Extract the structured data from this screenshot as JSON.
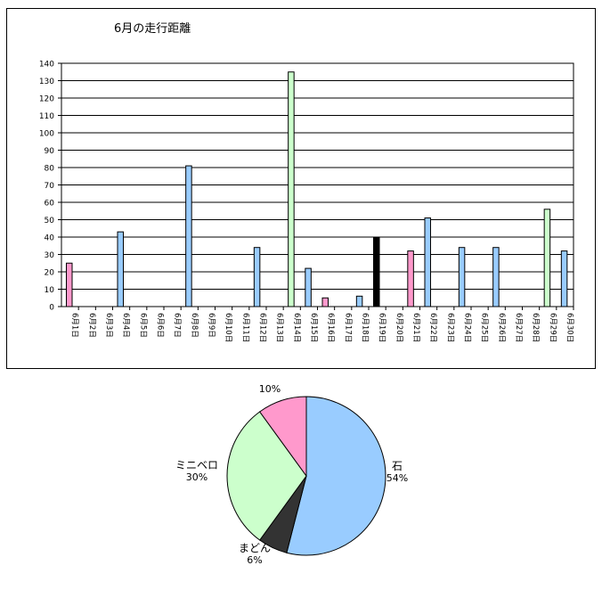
{
  "chart_data": [
    {
      "type": "bar",
      "title": "6月の走行距離",
      "xlabel": "",
      "ylabel": "",
      "ylim": [
        0,
        140
      ],
      "yticks": [
        0,
        10,
        20,
        30,
        40,
        50,
        60,
        70,
        80,
        90,
        100,
        110,
        120,
        130,
        140
      ],
      "grid": true,
      "categories": [
        "6月1日",
        "6月2日",
        "6月3日",
        "6月4日",
        "6月5日",
        "6月6日",
        "6月7日",
        "6月8日",
        "6月9日",
        "6月10日",
        "6月11日",
        "6月12日",
        "6月13日",
        "6月14日",
        "6月15日",
        "6月16日",
        "6月17日",
        "6月18日",
        "6月19日",
        "6月20日",
        "6月21日",
        "6月22日",
        "6月23日",
        "6月24日",
        "6月25日",
        "6月26日",
        "6月27日",
        "6月28日",
        "6月29日",
        "6月30日"
      ],
      "values": [
        25,
        0,
        0,
        43,
        0,
        0,
        0,
        81,
        0,
        0,
        0,
        34,
        0,
        135,
        22,
        5,
        0,
        6,
        40,
        0,
        32,
        51,
        0,
        34,
        0,
        34,
        0,
        0,
        56,
        32
      ],
      "bar_colors": [
        "#ff99cc",
        "#ffffff",
        "#ffffff",
        "#99ccff",
        "#ffffff",
        "#ffffff",
        "#ffffff",
        "#99ccff",
        "#ffffff",
        "#ffffff",
        "#ffffff",
        "#99ccff",
        "#ffffff",
        "#ccffcc",
        "#99ccff",
        "#ff99cc",
        "#ffffff",
        "#99ccff",
        "#000000",
        "#ffffff",
        "#ff99cc",
        "#99ccff",
        "#ffffff",
        "#99ccff",
        "#ffffff",
        "#99ccff",
        "#ffffff",
        "#ffffff",
        "#ccffcc",
        "#99ccff"
      ]
    },
    {
      "type": "pie",
      "title": "",
      "slices": [
        {
          "label": "石",
          "value": 54,
          "display": "54%",
          "color": "#99ccff"
        },
        {
          "label": "まどん",
          "value": 6,
          "display": "6%",
          "color": "#333333"
        },
        {
          "label": "ミニベロ",
          "value": 30,
          "display": "30%",
          "color": "#ccffcc"
        },
        {
          "label": "",
          "value": 10,
          "display": "10%",
          "color": "#ff99cc"
        }
      ]
    }
  ]
}
